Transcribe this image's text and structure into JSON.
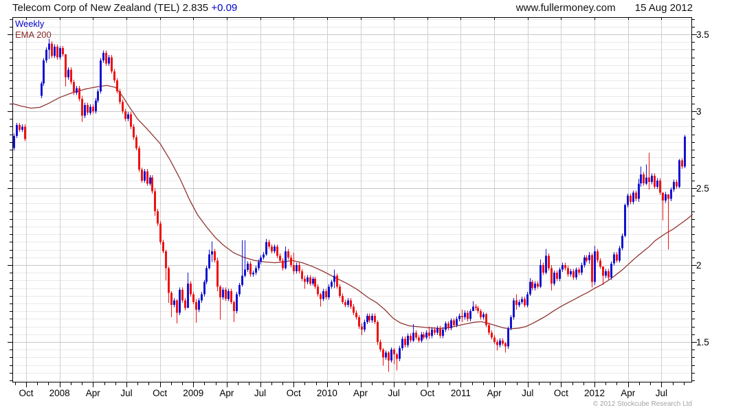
{
  "header": {
    "title": "Telecom Corp of New Zealand (TEL) 2.835",
    "change": "+0.09",
    "website": "www.fullermoney.com",
    "date": "15 Aug 2012"
  },
  "legend": {
    "timeframe": "Weekly",
    "overlay": "EMA 200"
  },
  "footer": {
    "copyright": "© 2012 Stockcube Research Ltd"
  },
  "colors": {
    "up_candle": "#1212d2",
    "down_candle": "#ee1111",
    "ema_line": "#8f3431",
    "grid_minor": "#e9e9e9",
    "grid_major": "#c6c6c6",
    "grid_vertical": "#cfcfcf",
    "axis": "#000000",
    "change_text": "#0000cc"
  },
  "chart_data": {
    "type": "candlestick",
    "title": "Telecom Corp of New Zealand (TEL)",
    "symbol": "TEL",
    "timeframe": "Weekly",
    "last_price": 2.835,
    "change": "+0.09",
    "overlay": "EMA 200",
    "date_range": "Sep 2007 - Aug 2012",
    "ylim": [
      1.24,
      3.61
    ],
    "y_ticks": [
      3.5,
      3,
      2.5,
      2,
      1.5
    ],
    "y_minor_step": 0.05,
    "x_tick_labels": [
      "Oct",
      "2008",
      "Apr",
      "Jul",
      "Oct",
      "2009",
      "Apr",
      "Jul",
      "Oct",
      "2010",
      "Apr",
      "Jul",
      "Oct",
      "2011",
      "Apr",
      "Jul",
      "Oct",
      "2012",
      "Apr",
      "Jul"
    ],
    "candles": {
      "note": "weekly closes, index 0 = late Aug 2007; null = no data plotted",
      "closes": [
        2.84,
        2.91,
        2.88,
        2.9,
        2.82,
        null,
        null,
        null,
        null,
        null,
        3.18,
        3.33,
        3.4,
        3.44,
        3.36,
        3.42,
        3.35,
        3.41,
        3.37,
        3.22,
        3.27,
        3.19,
        3.12,
        3.15,
        3.08,
        2.97,
        3.04,
        2.99,
        3.03,
        3.0,
        3.07,
        3.13,
        3.33,
        3.38,
        3.31,
        3.35,
        3.26,
        3.2,
        3.13,
        3.06,
        3.0,
        2.95,
        2.98,
        2.9,
        2.83,
        2.76,
        2.62,
        2.55,
        2.61,
        2.53,
        2.57,
        2.48,
        2.35,
        2.27,
        2.15,
        2.09,
        1.98,
        1.82,
        1.74,
        1.77,
        1.69,
        1.84,
        1.77,
        1.72,
        1.88,
        1.81,
        1.76,
        1.71,
        1.77,
        1.81,
        1.89,
        1.98,
        2.07,
        2.09,
        2.03,
        1.86,
        1.79,
        1.84,
        1.78,
        1.83,
        1.76,
        1.7,
        1.81,
        1.87,
        1.93,
        1.97,
        2.01,
        1.94,
        1.95,
        1.98,
        2.02,
        2.05,
        2.07,
        2.15,
        2.12,
        2.09,
        2.12,
        2.06,
        2.03,
        1.98,
        2.09,
        2.05,
        2.0,
        1.96,
        2.0,
        1.96,
        1.91,
        1.89,
        1.92,
        1.88,
        1.91,
        1.86,
        1.81,
        1.78,
        1.83,
        1.79,
        1.86,
        1.89,
        1.93,
        1.86,
        1.8,
        1.76,
        1.74,
        1.77,
        1.73,
        1.69,
        1.66,
        1.6,
        1.58,
        1.63,
        1.67,
        1.64,
        1.67,
        1.63,
        1.5,
        1.45,
        1.4,
        1.43,
        1.38,
        1.45,
        1.42,
        1.39,
        1.46,
        1.52,
        1.48,
        1.54,
        1.51,
        1.56,
        1.53,
        1.51,
        1.55,
        1.53,
        1.56,
        1.54,
        1.58,
        1.56,
        1.59,
        1.54,
        1.58,
        1.62,
        1.59,
        1.64,
        1.61,
        1.65,
        1.67,
        1.66,
        1.69,
        1.65,
        1.7,
        1.73,
        1.72,
        1.7,
        1.66,
        1.68,
        1.61,
        1.56,
        1.53,
        1.5,
        1.48,
        1.51,
        1.49,
        1.47,
        1.59,
        1.66,
        1.77,
        1.74,
        1.76,
        1.78,
        1.74,
        1.81,
        1.89,
        1.85,
        1.88,
        1.86,
        2.0,
        1.95,
        2.06,
        1.98,
        1.88,
        1.95,
        1.91,
        1.97,
        2.0,
        1.98,
        1.94,
        1.96,
        1.92,
        1.97,
        1.95,
        2.0,
        2.05,
        2.03,
        2.065,
        1.89,
        2.09,
        2.03,
        1.99,
        1.93,
        1.96,
        1.92,
        2.01,
        2.07,
        2.03,
        2.11,
        2.19,
        2.39,
        2.45,
        2.41,
        2.47,
        2.43,
        2.53,
        2.59,
        2.53,
        2.57,
        2.54,
        2.58,
        2.51,
        2.55,
        2.47,
        2.42,
        2.46,
        2.43,
        2.49,
        2.54,
        2.51,
        2.68,
        2.64,
        2.835
      ],
      "wicks_high_low": {
        "13": [
          3.47,
          3.34
        ],
        "19": [
          3.3,
          3.16
        ],
        "25": [
          3.1,
          2.93
        ],
        "52": [
          2.5,
          2.32
        ],
        "56": [
          2.1,
          1.9
        ],
        "57": [
          1.99,
          1.755
        ],
        "58": [
          1.83,
          1.66
        ],
        "60": [
          1.78,
          1.62
        ],
        "64": [
          1.95,
          1.76
        ],
        "67": [
          1.78,
          1.625
        ],
        "72": [
          2.1,
          1.97
        ],
        "73": [
          2.155,
          2.02
        ],
        "75": [
          2.05,
          1.83
        ],
        "76": [
          1.87,
          1.645
        ],
        "81": [
          1.77,
          1.63
        ],
        "84": [
          2.16,
          1.86
        ],
        "85": [
          2.16,
          1.92
        ],
        "93": [
          2.17,
          2.06
        ],
        "100": [
          2.12,
          1.97
        ],
        "103": [
          2.08,
          1.94
        ],
        "107": [
          1.93,
          1.845
        ],
        "113": [
          1.82,
          1.73
        ],
        "118": [
          1.97,
          1.85
        ],
        "128": [
          1.62,
          1.545
        ],
        "134": [
          1.64,
          1.48
        ],
        "136": [
          1.46,
          1.345
        ],
        "138": [
          1.44,
          1.305
        ],
        "140": [
          1.46,
          1.355
        ],
        "141": [
          1.43,
          1.315
        ],
        "147": [
          1.615,
          1.5
        ],
        "153": [
          1.6,
          1.52
        ],
        "165": [
          1.71,
          1.63
        ],
        "169": [
          1.765,
          1.7
        ],
        "174": [
          1.69,
          1.595
        ],
        "178": [
          1.515,
          1.445
        ],
        "181": [
          1.5,
          1.43
        ],
        "182": [
          1.6,
          1.455
        ],
        "185": [
          1.81,
          1.71
        ],
        "190": [
          1.915,
          1.8
        ],
        "194": [
          2.035,
          1.85
        ],
        "196": [
          2.105,
          1.94
        ],
        "198": [
          2.0,
          1.835
        ],
        "212": [
          2.085,
          2.01
        ],
        "213": [
          2.075,
          1.855
        ],
        "214": [
          2.125,
          1.87
        ],
        "217": [
          1.965,
          1.87
        ],
        "225": [
          2.4,
          2.18
        ],
        "230": [
          2.56,
          2.41
        ],
        "231": [
          2.64,
          2.51
        ],
        "233": [
          2.655,
          2.52
        ],
        "234": [
          2.73,
          2.49
        ],
        "239": [
          2.47,
          2.29
        ],
        "241": [
          2.46,
          2.1
        ],
        "245": [
          2.69,
          2.5
        ],
        "247": [
          2.845,
          2.63
        ]
      }
    },
    "ema_200_points_week_price": [
      [
        -0.5,
        3.05
      ],
      [
        2.5,
        3.035
      ],
      [
        6.3,
        3.02
      ],
      [
        9.6,
        3.025
      ],
      [
        12.7,
        3.05
      ],
      [
        17,
        3.09
      ],
      [
        21.5,
        3.12
      ],
      [
        26.6,
        3.145
      ],
      [
        30.4,
        3.158
      ],
      [
        34.2,
        3.168
      ],
      [
        37.5,
        3.155
      ],
      [
        40,
        3.1
      ],
      [
        42.5,
        3.03
      ],
      [
        45.6,
        2.95
      ],
      [
        49.4,
        2.88
      ],
      [
        53.9,
        2.79
      ],
      [
        57.7,
        2.68
      ],
      [
        61.3,
        2.56
      ],
      [
        64.6,
        2.43
      ],
      [
        67.6,
        2.33
      ],
      [
        70.9,
        2.25
      ],
      [
        74.2,
        2.18
      ],
      [
        77.2,
        2.13
      ],
      [
        81,
        2.08
      ],
      [
        84.8,
        2.05
      ],
      [
        88.6,
        2.03
      ],
      [
        92.4,
        2.02
      ],
      [
        96.2,
        2.015
      ],
      [
        99.2,
        2.02
      ],
      [
        102.5,
        2.03
      ],
      [
        106.3,
        2.015
      ],
      [
        110.1,
        1.99
      ],
      [
        113.9,
        1.96
      ],
      [
        118.2,
        1.92
      ],
      [
        122.8,
        1.88
      ],
      [
        126.6,
        1.84
      ],
      [
        130.4,
        1.79
      ],
      [
        133.7,
        1.755
      ],
      [
        136.7,
        1.71
      ],
      [
        139.7,
        1.655
      ],
      [
        142.3,
        1.625
      ],
      [
        145.6,
        1.605
      ],
      [
        149.4,
        1.598
      ],
      [
        153.2,
        1.592
      ],
      [
        157,
        1.588
      ],
      [
        160,
        1.592
      ],
      [
        163.3,
        1.605
      ],
      [
        166.6,
        1.618
      ],
      [
        169.6,
        1.628
      ],
      [
        172.2,
        1.632
      ],
      [
        174.7,
        1.622
      ],
      [
        177.2,
        1.608
      ],
      [
        180.3,
        1.592
      ],
      [
        182.8,
        1.585
      ],
      [
        186.1,
        1.59
      ],
      [
        188.6,
        1.6
      ],
      [
        191.1,
        1.62
      ],
      [
        193.7,
        1.645
      ],
      [
        196.2,
        1.67
      ],
      [
        198.7,
        1.7
      ],
      [
        201.3,
        1.728
      ],
      [
        203.8,
        1.752
      ],
      [
        206.3,
        1.775
      ],
      [
        208.9,
        1.8
      ],
      [
        211.4,
        1.822
      ],
      [
        213.9,
        1.848
      ],
      [
        216.5,
        1.872
      ],
      [
        219,
        1.9
      ],
      [
        221.5,
        1.932
      ],
      [
        224.1,
        1.968
      ],
      [
        226.6,
        2.008
      ],
      [
        229.1,
        2.048
      ],
      [
        231.6,
        2.085
      ],
      [
        234.2,
        2.122
      ],
      [
        236.2,
        2.158
      ],
      [
        238,
        2.18
      ],
      [
        240.5,
        2.21
      ],
      [
        243,
        2.235
      ],
      [
        245.6,
        2.268
      ],
      [
        248.1,
        2.3
      ],
      [
        250.1,
        2.33
      ]
    ]
  }
}
